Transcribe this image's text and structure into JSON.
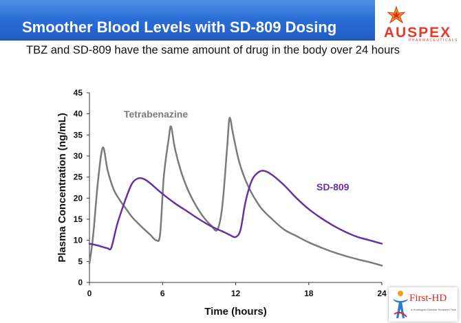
{
  "slide": {
    "title": "Smoother Blood Levels with SD-809 Dosing",
    "subtitle": "TBZ and SD-809 have the same amount of drug in the body over 24 hours"
  },
  "logo": {
    "name": "AUSPEX",
    "tagline": "PHARMACEUTICALS",
    "color": "#e23a2b"
  },
  "corner_logo": {
    "name": "First-HD",
    "tagline": "A Huntington Disease Research Trial"
  },
  "chart_data": {
    "type": "line",
    "title": "",
    "xlabel": "Time (hours)",
    "ylabel": "Plasma Concentration (ng/mL)",
    "xlim": [
      0,
      24
    ],
    "ylim": [
      0,
      45
    ],
    "x_ticks": [
      0,
      6,
      12,
      18,
      24
    ],
    "y_ticks": [
      0,
      5,
      10,
      15,
      20,
      25,
      30,
      35,
      40,
      45
    ],
    "grid": false,
    "legend": "labels placed on chart",
    "series": [
      {
        "name": "Tetrabenazine",
        "color": "#7a7a7a",
        "points": [
          [
            0,
            4.5
          ],
          [
            0.3,
            11
          ],
          [
            0.7,
            24
          ],
          [
            1.1,
            32
          ],
          [
            1.5,
            26.5
          ],
          [
            2,
            22
          ],
          [
            2.5,
            19.5
          ],
          [
            3,
            17.5
          ],
          [
            3.5,
            15.5
          ],
          [
            4,
            14
          ],
          [
            4.5,
            12.6
          ],
          [
            5,
            11.3
          ],
          [
            5.5,
            10
          ],
          [
            5.8,
            11.5
          ],
          [
            6.1,
            25
          ],
          [
            6.5,
            34
          ],
          [
            6.7,
            37
          ],
          [
            7,
            32
          ],
          [
            7.5,
            26.5
          ],
          [
            8,
            22.5
          ],
          [
            8.5,
            19.5
          ],
          [
            9,
            17
          ],
          [
            9.5,
            15
          ],
          [
            10,
            13.5
          ],
          [
            10.5,
            12.5
          ],
          [
            10.9,
            18
          ],
          [
            11.3,
            32
          ],
          [
            11.5,
            39
          ],
          [
            11.8,
            35
          ],
          [
            12.3,
            28.5
          ],
          [
            13,
            23
          ],
          [
            14,
            18
          ],
          [
            15,
            15
          ],
          [
            16,
            12.5
          ],
          [
            17,
            11
          ],
          [
            18,
            9.5
          ],
          [
            19,
            8.3
          ],
          [
            20,
            7.2
          ],
          [
            21,
            6.3
          ],
          [
            22,
            5.5
          ],
          [
            23,
            4.8
          ],
          [
            24,
            4
          ]
        ]
      },
      {
        "name": "SD-809",
        "color": "#6a2fa0",
        "points": [
          [
            0,
            9.2
          ],
          [
            0.5,
            8.9
          ],
          [
            1,
            8.5
          ],
          [
            1.5,
            8.1
          ],
          [
            1.8,
            8.3
          ],
          [
            2.3,
            14
          ],
          [
            3,
            20
          ],
          [
            3.5,
            23.5
          ],
          [
            4,
            24.7
          ],
          [
            4.5,
            24.5
          ],
          [
            5,
            23.5
          ],
          [
            6,
            21
          ],
          [
            7,
            18.8
          ],
          [
            8,
            16.9
          ],
          [
            9,
            15
          ],
          [
            10,
            13.3
          ],
          [
            11,
            12
          ],
          [
            11.5,
            11.3
          ],
          [
            12,
            10.8
          ],
          [
            12.4,
            12.5
          ],
          [
            12.8,
            19
          ],
          [
            13.3,
            24
          ],
          [
            13.8,
            26
          ],
          [
            14.3,
            26.5
          ],
          [
            15,
            25.5
          ],
          [
            16,
            23
          ],
          [
            17,
            20
          ],
          [
            18,
            17.4
          ],
          [
            19,
            15.3
          ],
          [
            20,
            13.5
          ],
          [
            21,
            12
          ],
          [
            22,
            10.8
          ],
          [
            23,
            10
          ],
          [
            24,
            9.2
          ]
        ]
      }
    ]
  }
}
